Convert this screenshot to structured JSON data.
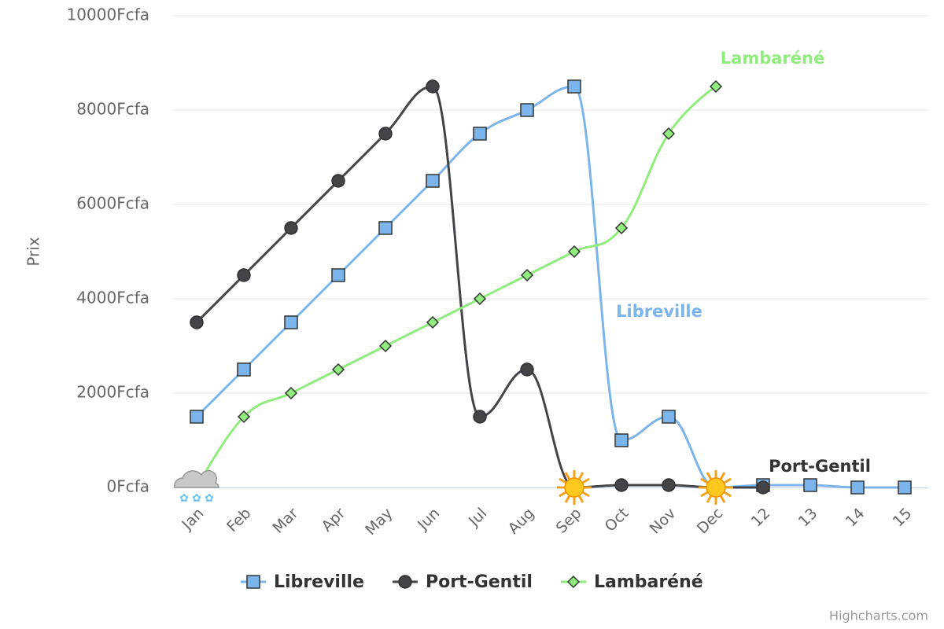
{
  "chart_data": {
    "type": "spline",
    "y_axis_title": "Prix",
    "credits": "Highcharts.com",
    "categories": [
      "Jan",
      "Feb",
      "Mar",
      "Apr",
      "May",
      "Jun",
      "Jul",
      "Aug",
      "Sep",
      "Oct",
      "Nov",
      "Dec",
      "12",
      "13",
      "14",
      "15"
    ],
    "ylim": [
      0,
      10000
    ],
    "yticks": [
      {
        "value": 0,
        "label": "0Fcfa"
      },
      {
        "value": 2000,
        "label": "2000Fcfa"
      },
      {
        "value": 4000,
        "label": "4000Fcfa"
      },
      {
        "value": 6000,
        "label": "6000Fcfa"
      },
      {
        "value": 8000,
        "label": "8000Fcfa"
      },
      {
        "value": 10000,
        "label": "10000Fcfa"
      }
    ],
    "grid": true,
    "legend": "bottom",
    "series": [
      {
        "name": "Libreville",
        "color": "#7cb5ec",
        "symbol": "square",
        "values": [
          1500,
          2500,
          3500,
          4500,
          5500,
          6500,
          7500,
          8000,
          8500,
          1000,
          1500,
          0,
          50,
          50,
          0,
          0
        ],
        "label_at": 9,
        "icon_points": []
      },
      {
        "name": "Port-Gentil",
        "color": "#434348",
        "symbol": "circle",
        "values": [
          3500,
          4500,
          5500,
          6500,
          7500,
          8500,
          1500,
          2500,
          0,
          50,
          50,
          0,
          0,
          null,
          null,
          null
        ],
        "label_at": 12,
        "icon_points": [
          {
            "index": 8,
            "icon": "sun"
          },
          {
            "index": 11,
            "icon": "sun"
          }
        ]
      },
      {
        "name": "Lambaréné",
        "color": "#90ed7d",
        "symbol": "diamond",
        "values": [
          0,
          1500,
          2000,
          2500,
          3000,
          3500,
          4000,
          4500,
          5000,
          5500,
          7500,
          8500,
          null,
          null,
          null,
          null
        ],
        "label_at": 11,
        "icon_points": [
          {
            "index": 0,
            "icon": "cloud"
          }
        ]
      }
    ]
  }
}
